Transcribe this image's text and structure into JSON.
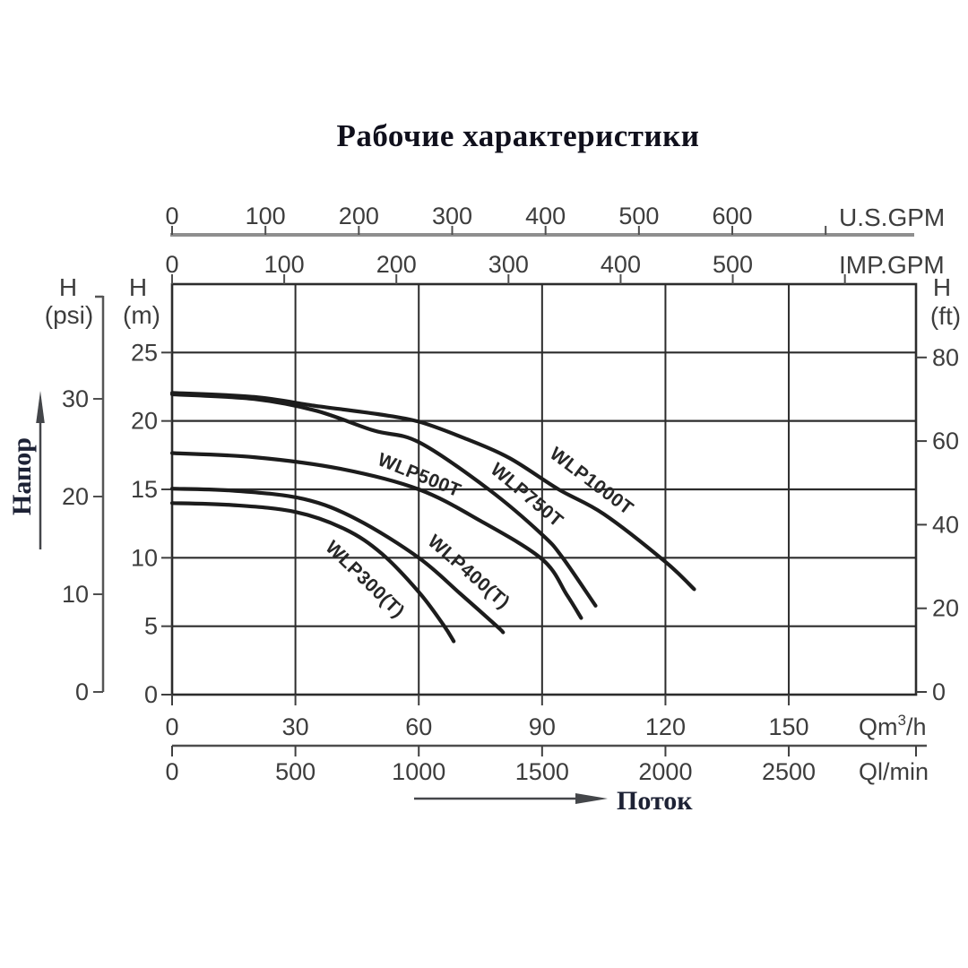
{
  "title": "Рабочие характеристики",
  "left_axis_arrow_label": "Напор",
  "bottom_axis_arrow_label": "Поток",
  "colors": {
    "grid": "#2c2c2c",
    "curve": "#1c1c1c",
    "tick_text": "#3d3d3d",
    "us_line": "#8e8e8e",
    "lmin_line": "#4d4d4d",
    "russian_text": "#1d2235",
    "curve_label": "#272727",
    "arrow": "#44464a"
  },
  "chart_data": {
    "type": "line",
    "title": "Рабочие характеристики",
    "grid": "on",
    "axes": {
      "x_top_us_gpm": {
        "label": "U.S.GPM",
        "ticks": [
          0,
          100,
          200,
          300,
          400,
          500,
          600
        ],
        "extra_unlabeled_ticks": [
          700
        ]
      },
      "x_top_imp_gpm": {
        "label": "IMP.GPM",
        "ticks": [
          0,
          100,
          200,
          300,
          400,
          500
        ],
        "extra_unlabeled_ticks": [
          600
        ]
      },
      "x_bottom_m3h": {
        "label_pre": "Qm",
        "label_sup": "3",
        "label_post": "/h",
        "ticks": [
          0,
          30,
          60,
          90,
          120,
          150
        ],
        "range": [
          0,
          181
        ]
      },
      "x_bottom_lmin": {
        "label": "Ql/min",
        "ticks": [
          0,
          500,
          1000,
          1500,
          2000,
          2500
        ]
      },
      "y_left_psi": {
        "header": "H",
        "unit": "(psi)",
        "ticks": [
          0,
          10,
          20,
          30
        ]
      },
      "y_left_m": {
        "header": "H",
        "unit": "(m)",
        "ticks": [
          0,
          5,
          10,
          15,
          20,
          25
        ],
        "range": [
          0,
          30
        ]
      },
      "y_right_ft": {
        "header": "H",
        "unit": "(ft)",
        "ticks": [
          0,
          20,
          40,
          60,
          80
        ]
      }
    },
    "series": [
      {
        "name": "WLP300(T)",
        "points": [
          [
            0,
            14.0
          ],
          [
            15,
            13.85
          ],
          [
            30,
            13.35
          ],
          [
            42,
            12.1
          ],
          [
            51,
            10.3
          ],
          [
            60,
            7.5
          ],
          [
            66,
            5.1
          ],
          [
            68.5,
            3.9
          ]
        ],
        "label": {
          "x": 362,
          "y": 612,
          "angle": 44
        }
      },
      {
        "name": "WLP400(T)",
        "points": [
          [
            0,
            15.05
          ],
          [
            15,
            14.9
          ],
          [
            32,
            14.3
          ],
          [
            45,
            12.8
          ],
          [
            60,
            10.0
          ],
          [
            70,
            7.4
          ],
          [
            79,
            5.0
          ],
          [
            80.5,
            4.55
          ]
        ],
        "label": {
          "x": 476,
          "y": 606,
          "angle": 41
        }
      },
      {
        "name": "WLP500T",
        "points": [
          [
            0,
            17.65
          ],
          [
            20,
            17.35
          ],
          [
            41,
            16.5
          ],
          [
            60,
            15.0
          ],
          [
            75,
            12.7
          ],
          [
            90,
            9.9
          ],
          [
            96,
            7.3
          ],
          [
            99.5,
            5.6
          ]
        ],
        "label": {
          "x": 420,
          "y": 518,
          "angle": 22
        }
      },
      {
        "name": "WLP750T",
        "points": [
          [
            0,
            21.95
          ],
          [
            20,
            21.6
          ],
          [
            35,
            20.75
          ],
          [
            49,
            19.3
          ],
          [
            60,
            18.45
          ],
          [
            77,
            15.0
          ],
          [
            90,
            11.7
          ],
          [
            95,
            10.0
          ],
          [
            103,
            6.5
          ]
        ],
        "label": {
          "x": 546,
          "y": 526,
          "angle": 40
        }
      },
      {
        "name": "WLP1000T",
        "points": [
          [
            0,
            22.05
          ],
          [
            20,
            21.75
          ],
          [
            35,
            21.1
          ],
          [
            50,
            20.5
          ],
          [
            60,
            19.95
          ],
          [
            71,
            18.75
          ],
          [
            82,
            17.3
          ],
          [
            94,
            15.0
          ],
          [
            105,
            13.2
          ],
          [
            120,
            9.7
          ],
          [
            127,
            7.7
          ]
        ],
        "label": {
          "x": 612,
          "y": 509,
          "angle": 37
        }
      }
    ]
  }
}
